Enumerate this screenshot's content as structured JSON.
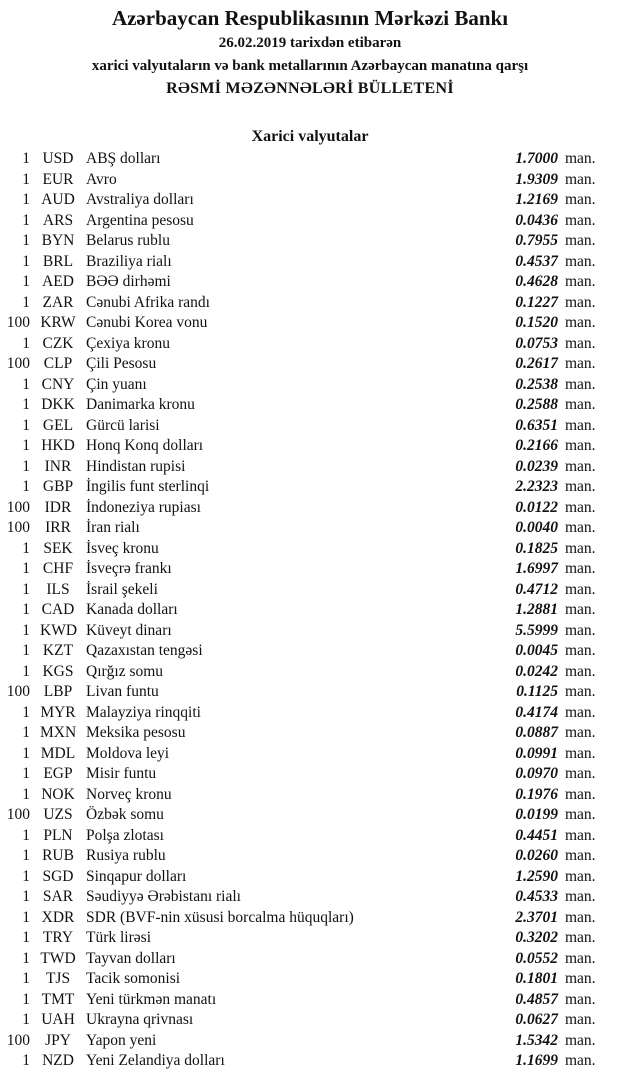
{
  "header": {
    "title": "Azərbaycan Respublikasının Mərkəzi Bankı",
    "date_line": "26.02.2019  tarixdən etibarən",
    "subtitle": "xarici valyutaların və bank metallarının Azərbaycan manatına qarşı",
    "bulletin": "RƏSMİ MƏZƏNNƏLƏRİ BÜLLETENİ"
  },
  "section_title": "Xarici valyutalar",
  "unit_label": "man.",
  "rates": [
    {
      "nominal": "1",
      "code": "USD",
      "name": "ABŞ dolları",
      "value": "1.7000"
    },
    {
      "nominal": "1",
      "code": "EUR",
      "name": "Avro",
      "value": "1.9309"
    },
    {
      "nominal": "1",
      "code": "AUD",
      "name": "Avstraliya dolları",
      "value": "1.2169"
    },
    {
      "nominal": "1",
      "code": "ARS",
      "name": "Argentina pesosu",
      "value": "0.0436"
    },
    {
      "nominal": "1",
      "code": "BYN",
      "name": "Belarus rublu",
      "value": "0.7955"
    },
    {
      "nominal": "1",
      "code": "BRL",
      "name": "Braziliya rialı",
      "value": "0.4537"
    },
    {
      "nominal": "1",
      "code": "AED",
      "name": "BƏƏ dirhəmi",
      "value": "0.4628"
    },
    {
      "nominal": "1",
      "code": "ZAR",
      "name": "Cənubi Afrika randı",
      "value": "0.1227"
    },
    {
      "nominal": "100",
      "code": "KRW",
      "name": "Cənubi Korea vonu",
      "value": "0.1520"
    },
    {
      "nominal": "1",
      "code": "CZK",
      "name": "Çexiya kronu",
      "value": "0.0753"
    },
    {
      "nominal": "100",
      "code": "CLP",
      "name": "Çili Pesosu",
      "value": "0.2617"
    },
    {
      "nominal": "1",
      "code": "CNY",
      "name": "Çin yuanı",
      "value": "0.2538"
    },
    {
      "nominal": "1",
      "code": "DKK",
      "name": "Danimarka kronu",
      "value": "0.2588"
    },
    {
      "nominal": "1",
      "code": "GEL",
      "name": "Gürcü larisi",
      "value": "0.6351"
    },
    {
      "nominal": "1",
      "code": "HKD",
      "name": "Honq Konq dolları",
      "value": "0.2166"
    },
    {
      "nominal": "1",
      "code": "INR",
      "name": "Hindistan rupisi",
      "value": "0.0239"
    },
    {
      "nominal": "1",
      "code": "GBP",
      "name": "İngilis funt sterlinqi",
      "value": "2.2323"
    },
    {
      "nominal": "100",
      "code": "IDR",
      "name": "İndoneziya rupiası",
      "value": "0.0122"
    },
    {
      "nominal": "100",
      "code": "IRR",
      "name": "İran rialı",
      "value": "0.0040"
    },
    {
      "nominal": "1",
      "code": "SEK",
      "name": "İsveç kronu",
      "value": "0.1825"
    },
    {
      "nominal": "1",
      "code": "CHF",
      "name": "İsveçrə frankı",
      "value": "1.6997"
    },
    {
      "nominal": "1",
      "code": "ILS",
      "name": "İsrail şekeli",
      "value": "0.4712"
    },
    {
      "nominal": "1",
      "code": "CAD",
      "name": "Kanada dolları",
      "value": "1.2881"
    },
    {
      "nominal": "1",
      "code": "KWD",
      "name": "Küveyt dinarı",
      "value": "5.5999"
    },
    {
      "nominal": "1",
      "code": "KZT",
      "name": "Qazaxıstan tengəsi",
      "value": "0.0045"
    },
    {
      "nominal": "1",
      "code": "KGS",
      "name": "Qırğız somu",
      "value": "0.0242"
    },
    {
      "nominal": "100",
      "code": "LBP",
      "name": "Livan funtu",
      "value": "0.1125"
    },
    {
      "nominal": "1",
      "code": "MYR",
      "name": "Malayziya rinqqiti",
      "value": "0.4174"
    },
    {
      "nominal": "1",
      "code": "MXN",
      "name": "Meksika pesosu",
      "value": "0.0887"
    },
    {
      "nominal": "1",
      "code": "MDL",
      "name": "Moldova leyi",
      "value": "0.0991"
    },
    {
      "nominal": "1",
      "code": "EGP",
      "name": "Misir funtu",
      "value": "0.0970"
    },
    {
      "nominal": "1",
      "code": "NOK",
      "name": "Norveç kronu",
      "value": "0.1976"
    },
    {
      "nominal": "100",
      "code": "UZS",
      "name": "Özbək somu",
      "value": "0.0199"
    },
    {
      "nominal": "1",
      "code": "PLN",
      "name": "Polşa zlotası",
      "value": "0.4451"
    },
    {
      "nominal": "1",
      "code": "RUB",
      "name": "Rusiya rublu",
      "value": "0.0260"
    },
    {
      "nominal": "1",
      "code": "SGD",
      "name": "Sinqapur dolları",
      "value": "1.2590"
    },
    {
      "nominal": "1",
      "code": "SAR",
      "name": "Səudiyyə Ərəbistanı rialı",
      "value": "0.4533"
    },
    {
      "nominal": "1",
      "code": "XDR",
      "name": "SDR (BVF-nin xüsusi borcalma hüquqları)",
      "value": "2.3701"
    },
    {
      "nominal": "1",
      "code": "TRY",
      "name": "Türk lirəsi",
      "value": "0.3202"
    },
    {
      "nominal": "1",
      "code": "TWD",
      "name": "Tayvan dolları",
      "value": "0.0552"
    },
    {
      "nominal": "1",
      "code": "TJS",
      "name": "Tacik somonisi",
      "value": "0.1801"
    },
    {
      "nominal": "1",
      "code": "TMT",
      "name": "Yeni türkmən manatı",
      "value": "0.4857"
    },
    {
      "nominal": "1",
      "code": "UAH",
      "name": "Ukrayna qrivnası",
      "value": "0.0627"
    },
    {
      "nominal": "100",
      "code": "JPY",
      "name": "Yapon yeni",
      "value": "1.5342"
    },
    {
      "nominal": "1",
      "code": "NZD",
      "name": "Yeni Zelandiya dolları",
      "value": "1.1699"
    }
  ]
}
